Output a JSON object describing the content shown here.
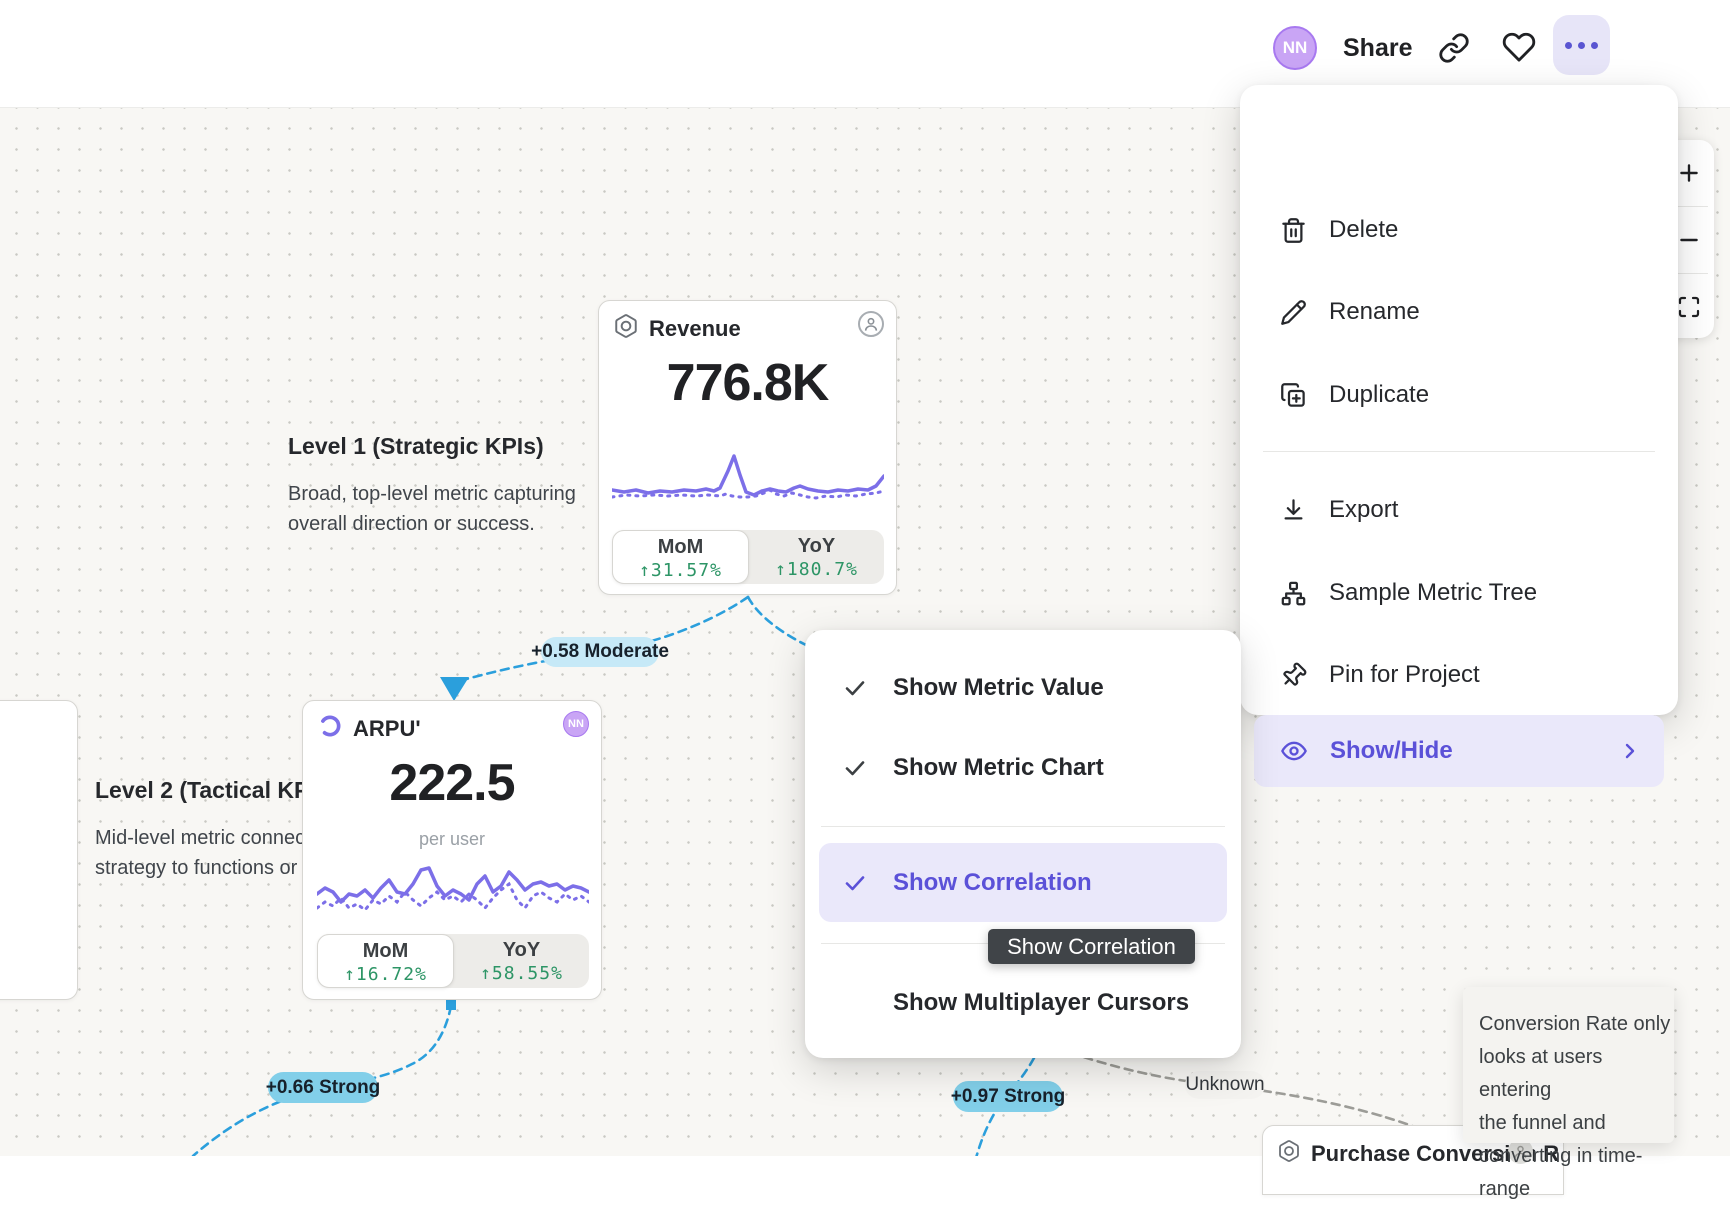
{
  "header": {
    "avatar_initials": "NN",
    "share_label": "Share"
  },
  "context_menu": {
    "items": [
      {
        "label": "Delete",
        "icon": "trash"
      },
      {
        "label": "Rename",
        "icon": "pencil"
      },
      {
        "label": "Duplicate",
        "icon": "duplicate"
      },
      {
        "label": "Export",
        "icon": "download"
      },
      {
        "label": "Sample Metric Tree",
        "icon": "metric-tree"
      },
      {
        "label": "Pin for Project",
        "icon": "pin"
      },
      {
        "label": "Show/Hide",
        "icon": "eye",
        "active": true,
        "has_submenu": true
      }
    ]
  },
  "view_menu": {
    "items": [
      {
        "label": "Show Metric Value",
        "checked": true
      },
      {
        "label": "Show Metric Chart",
        "checked": true
      },
      {
        "label": "Show Correlation",
        "checked": true,
        "highlighted": true
      },
      {
        "label": "Show Multiplayer Cursors",
        "checked": false
      }
    ],
    "tooltip": "Show Correlation"
  },
  "annotations": {
    "level1_title": "Level 1 (Strategic KPIs)",
    "level1_desc": [
      "Broad, top-level metric capturing",
      "overall direction or success."
    ],
    "level2_title": "Level 2 (Tactical KPIs",
    "level2_desc": [
      "Mid-level metric connecting",
      "strategy to functions or doma"
    ]
  },
  "cards": {
    "revenue": {
      "title": "Revenue",
      "value": "776.8K",
      "tabs": {
        "mom_label": "MoM",
        "mom_value": "↑31.57%",
        "yoy_label": "YoY",
        "yoy_value": "↑180.7%"
      },
      "spark_solid": [
        [
          0,
          41
        ],
        [
          12,
          43
        ],
        [
          24,
          41
        ],
        [
          36,
          44
        ],
        [
          48,
          42
        ],
        [
          60,
          43
        ],
        [
          72,
          41
        ],
        [
          84,
          42
        ],
        [
          94,
          40
        ],
        [
          102,
          42
        ],
        [
          108,
          39
        ],
        [
          116,
          22
        ],
        [
          122,
          7
        ],
        [
          128,
          26
        ],
        [
          134,
          43
        ],
        [
          142,
          46
        ],
        [
          150,
          42
        ],
        [
          158,
          40
        ],
        [
          166,
          42
        ],
        [
          174,
          43
        ],
        [
          182,
          39
        ],
        [
          188,
          37
        ],
        [
          196,
          40
        ],
        [
          206,
          42
        ],
        [
          216,
          43
        ],
        [
          226,
          41
        ],
        [
          236,
          42
        ],
        [
          246,
          40
        ],
        [
          256,
          41
        ],
        [
          264,
          37
        ],
        [
          272,
          27
        ]
      ],
      "spark_dotted": [
        [
          0,
          48
        ],
        [
          14,
          46
        ],
        [
          28,
          47
        ],
        [
          42,
          46
        ],
        [
          56,
          47
        ],
        [
          70,
          46
        ],
        [
          84,
          47
        ],
        [
          96,
          46
        ],
        [
          108,
          47
        ],
        [
          114,
          45
        ],
        [
          120,
          47
        ],
        [
          128,
          48
        ],
        [
          136,
          48
        ],
        [
          144,
          47
        ],
        [
          152,
          44
        ],
        [
          158,
          41
        ],
        [
          164,
          45
        ],
        [
          172,
          47
        ],
        [
          180,
          44
        ],
        [
          188,
          46
        ],
        [
          196,
          48
        ],
        [
          204,
          49
        ],
        [
          214,
          47
        ],
        [
          224,
          48
        ],
        [
          234,
          46
        ],
        [
          244,
          47
        ],
        [
          254,
          45
        ],
        [
          264,
          44
        ],
        [
          272,
          42
        ]
      ]
    },
    "arpu": {
      "title": "ARPU'",
      "value": "222.5",
      "unit": "per user",
      "tabs": {
        "mom_label": "MoM",
        "mom_value": "↑16.72%",
        "yoy_label": "YoY",
        "yoy_value": "↑58.55%"
      },
      "spark_solid": [
        [
          0,
          38
        ],
        [
          8,
          32
        ],
        [
          16,
          36
        ],
        [
          24,
          46
        ],
        [
          32,
          38
        ],
        [
          40,
          40
        ],
        [
          48,
          34
        ],
        [
          56,
          42
        ],
        [
          64,
          32
        ],
        [
          72,
          24
        ],
        [
          80,
          36
        ],
        [
          88,
          38
        ],
        [
          96,
          28
        ],
        [
          104,
          14
        ],
        [
          112,
          12
        ],
        [
          120,
          30
        ],
        [
          128,
          40
        ],
        [
          136,
          34
        ],
        [
          144,
          38
        ],
        [
          152,
          44
        ],
        [
          160,
          28
        ],
        [
          168,
          20
        ],
        [
          176,
          36
        ],
        [
          184,
          30
        ],
        [
          192,
          16
        ],
        [
          200,
          24
        ],
        [
          208,
          34
        ],
        [
          216,
          28
        ],
        [
          224,
          26
        ],
        [
          232,
          30
        ],
        [
          240,
          28
        ],
        [
          248,
          34
        ],
        [
          256,
          30
        ],
        [
          264,
          32
        ],
        [
          272,
          36
        ]
      ],
      "spark_dotted": [
        [
          0,
          52
        ],
        [
          8,
          46
        ],
        [
          16,
          50
        ],
        [
          24,
          42
        ],
        [
          32,
          52
        ],
        [
          40,
          48
        ],
        [
          48,
          54
        ],
        [
          56,
          44
        ],
        [
          64,
          48
        ],
        [
          72,
          40
        ],
        [
          80,
          46
        ],
        [
          88,
          36
        ],
        [
          96,
          44
        ],
        [
          104,
          50
        ],
        [
          112,
          42
        ],
        [
          120,
          36
        ],
        [
          128,
          44
        ],
        [
          136,
          40
        ],
        [
          144,
          46
        ],
        [
          152,
          38
        ],
        [
          160,
          44
        ],
        [
          168,
          52
        ],
        [
          176,
          42
        ],
        [
          184,
          34
        ],
        [
          192,
          28
        ],
        [
          200,
          44
        ],
        [
          208,
          52
        ],
        [
          216,
          40
        ],
        [
          224,
          36
        ],
        [
          232,
          42
        ],
        [
          240,
          46
        ],
        [
          248,
          38
        ],
        [
          256,
          44
        ],
        [
          264,
          40
        ],
        [
          272,
          46
        ]
      ]
    },
    "purchase": {
      "title": "Purchase Conversion R"
    }
  },
  "badges": {
    "rev_arpu": "+0.58 Moderate",
    "arpu_child": "+0.66 Strong",
    "mid_child": "+0.97 Strong",
    "unknown": "Unknown"
  },
  "note_tooltip": {
    "lines": [
      "Conversion Rate only",
      "looks at users entering",
      "the funnel and",
      "converting in time-range"
    ]
  },
  "colors": {
    "accent_purple": "#5B51D8",
    "highlight_row": "#EAE8FA",
    "dash_blue": "#2B9FDC",
    "dash_gray": "#9C9C97",
    "positive_green": "#2D9566",
    "badge_strong": "#82CFE9",
    "badge_moderate": "#C6E9F7",
    "tooltip_dark_bg": "#404448",
    "spark_purple": "#7C6FE8",
    "avatar_purple": "#C9A5F5"
  }
}
